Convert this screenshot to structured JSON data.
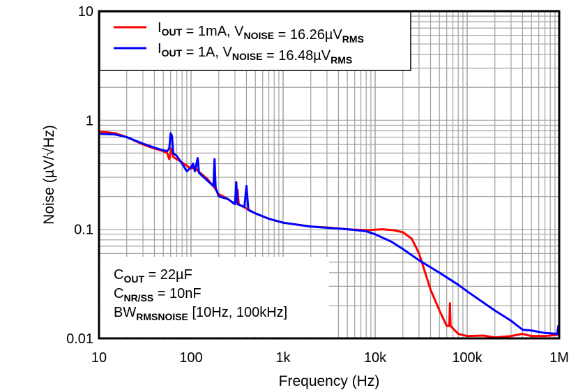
{
  "chart_data": {
    "type": "line",
    "xlabel": "Frequency (Hz)",
    "ylabel": "Noise (µV/√Hz)",
    "xscale": "log",
    "yscale": "log",
    "xlim": [
      10,
      1000000
    ],
    "ylim": [
      0.01,
      10
    ],
    "grid": true,
    "legend_placement": "top-left",
    "x_ticks": [
      {
        "v": 10,
        "t": "10"
      },
      {
        "v": 100,
        "t": "100"
      },
      {
        "v": 1000,
        "t": "1k"
      },
      {
        "v": 10000,
        "t": "10k"
      },
      {
        "v": 100000,
        "t": "100k"
      },
      {
        "v": 1000000,
        "t": "1M"
      }
    ],
    "y_ticks": [
      {
        "v": 0.01,
        "t": "0.01"
      },
      {
        "v": 0.1,
        "t": "0.1"
      },
      {
        "v": 1,
        "t": "1"
      },
      {
        "v": 10,
        "t": "10"
      }
    ],
    "series": [
      {
        "name": "IOUT = 1mA, VNOISE = 16.26µVRMS",
        "legend": {
          "i": "I",
          "isub": "OUT",
          "mid": " = 1mA, V",
          "vsub": "NOISE",
          "val": " = 16.26µV",
          "rsub": "RMS"
        },
        "color": "#ff0000",
        "points": [
          [
            10,
            0.79
          ],
          [
            15,
            0.76
          ],
          [
            20,
            0.7
          ],
          [
            30,
            0.6
          ],
          [
            40,
            0.55
          ],
          [
            50,
            0.52
          ],
          [
            55,
            0.5
          ],
          [
            58,
            0.44
          ],
          [
            61,
            0.55
          ],
          [
            64,
            0.46
          ],
          [
            70,
            0.44
          ],
          [
            80,
            0.41
          ],
          [
            100,
            0.36
          ],
          [
            110,
            0.37
          ],
          [
            120,
            0.34
          ],
          [
            150,
            0.29
          ],
          [
            180,
            0.24
          ],
          [
            200,
            0.21
          ],
          [
            250,
            0.19
          ],
          [
            300,
            0.17
          ],
          [
            320,
            0.23
          ],
          [
            330,
            0.17
          ],
          [
            400,
            0.155
          ],
          [
            500,
            0.14
          ],
          [
            700,
            0.125
          ],
          [
            1000,
            0.115
          ],
          [
            2000,
            0.106
          ],
          [
            3000,
            0.104
          ],
          [
            5000,
            0.1
          ],
          [
            8000,
            0.098
          ],
          [
            12000,
            0.1
          ],
          [
            16000,
            0.098
          ],
          [
            20000,
            0.094
          ],
          [
            25000,
            0.082
          ],
          [
            30000,
            0.06
          ],
          [
            35000,
            0.04
          ],
          [
            40000,
            0.028
          ],
          [
            50000,
            0.018
          ],
          [
            60000,
            0.013
          ],
          [
            64000,
            0.013
          ],
          [
            65000,
            0.021
          ],
          [
            66000,
            0.013
          ],
          [
            80000,
            0.011
          ],
          [
            100000,
            0.0105
          ],
          [
            150000,
            0.0106
          ],
          [
            200000,
            0.0102
          ],
          [
            300000,
            0.0105
          ],
          [
            400000,
            0.011
          ],
          [
            500000,
            0.0105
          ],
          [
            700000,
            0.0105
          ],
          [
            1000000,
            0.0108
          ]
        ]
      },
      {
        "name": "IOUT = 1A, VNOISE = 16.48µVRMS",
        "legend": {
          "i": "I",
          "isub": "OUT",
          "mid": " = 1A, V",
          "vsub": "NOISE",
          "val": " = 16.48µV",
          "rsub": "RMS"
        },
        "color": "#0000ff",
        "points": [
          [
            10,
            0.75
          ],
          [
            15,
            0.74
          ],
          [
            20,
            0.7
          ],
          [
            30,
            0.61
          ],
          [
            40,
            0.56
          ],
          [
            50,
            0.53
          ],
          [
            55,
            0.52
          ],
          [
            58,
            0.55
          ],
          [
            60,
            0.76
          ],
          [
            62,
            0.72
          ],
          [
            64,
            0.5
          ],
          [
            70,
            0.47
          ],
          [
            80,
            0.4
          ],
          [
            90,
            0.34
          ],
          [
            100,
            0.37
          ],
          [
            105,
            0.4
          ],
          [
            110,
            0.34
          ],
          [
            118,
            0.45
          ],
          [
            122,
            0.33
          ],
          [
            150,
            0.28
          ],
          [
            175,
            0.25
          ],
          [
            180,
            0.44
          ],
          [
            185,
            0.24
          ],
          [
            200,
            0.2
          ],
          [
            250,
            0.19
          ],
          [
            300,
            0.17
          ],
          [
            310,
            0.27
          ],
          [
            320,
            0.17
          ],
          [
            380,
            0.16
          ],
          [
            400,
            0.25
          ],
          [
            420,
            0.15
          ],
          [
            500,
            0.14
          ],
          [
            700,
            0.125
          ],
          [
            1000,
            0.115
          ],
          [
            2000,
            0.106
          ],
          [
            5000,
            0.1
          ],
          [
            8000,
            0.096
          ],
          [
            10000,
            0.09
          ],
          [
            15000,
            0.077
          ],
          [
            20000,
            0.066
          ],
          [
            30000,
            0.052
          ],
          [
            50000,
            0.04
          ],
          [
            80000,
            0.031
          ],
          [
            100000,
            0.027
          ],
          [
            200000,
            0.018
          ],
          [
            300000,
            0.0145
          ],
          [
            400000,
            0.012
          ],
          [
            500000,
            0.0118
          ],
          [
            700000,
            0.0112
          ],
          [
            950000,
            0.011
          ],
          [
            980000,
            0.013
          ],
          [
            1000000,
            0.012
          ]
        ]
      }
    ],
    "annotations": [
      {
        "main": "C",
        "sub": "OUT",
        "rest": " = 22µF"
      },
      {
        "main": "C",
        "sub": "NR/SS",
        "rest": " = 10nF"
      },
      {
        "main": "BW",
        "sub": "RMSNOISE",
        "rest": " [10Hz, 100kHz]"
      }
    ]
  }
}
